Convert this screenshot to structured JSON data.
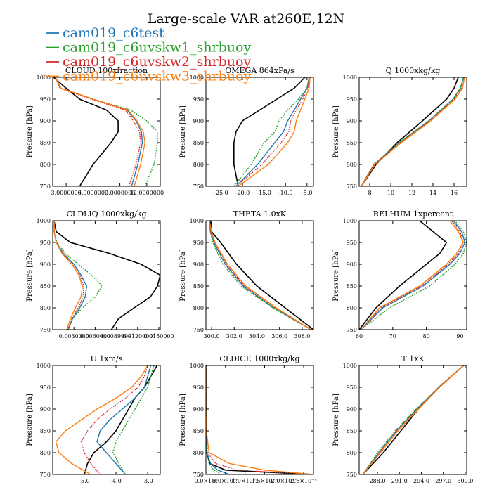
{
  "figure": {
    "title": "Large-scale VAR at260E,12N",
    "ylabel": "Pressure [hPa]"
  },
  "legend": [
    {
      "name": "cam019_c6test",
      "color": "#1f77b4"
    },
    {
      "name": "cam019_c6uvskw1_shrbuoy",
      "color": "#2ca02c"
    },
    {
      "name": "cam019_c6uvskw2_shrbuoy",
      "color": "#d62728"
    },
    {
      "name": "cam019_c6uvskw3_shrbuoy",
      "color": "#ff7f0e"
    }
  ],
  "colors": {
    "ref": "#000000",
    "s1": "#1f77b4",
    "s2": "#2ca02c",
    "s3": "#d62728",
    "s4": "#ff7f0e"
  },
  "chart_data": [
    {
      "type": "line",
      "title": "CLOUD  100xfraction",
      "ylabel": "Pressure [hPa]",
      "ylim": [
        1000,
        750
      ],
      "xlim": [
        1.5,
        13.5
      ],
      "xticks": [
        3,
        6,
        9,
        12
      ],
      "xtick_labels": [
        "3.0000000",
        "6.0000000",
        "9.0000000",
        "12.0000000"
      ],
      "y": [
        750,
        800,
        850,
        875,
        900,
        925,
        950,
        975,
        1000
      ],
      "series": [
        {
          "color": "#000000",
          "values": [
            4.5,
            6.0,
            8.0,
            8.8,
            8.8,
            7.5,
            4.5,
            3.0,
            1.6
          ]
        },
        {
          "color": "#1f77b4",
          "values": [
            10.3,
            11.0,
            11.5,
            11.4,
            10.8,
            9.8,
            6.0,
            2.4,
            1.8
          ]
        },
        {
          "color": "#2ca02c",
          "values": [
            11.8,
            12.8,
            13.2,
            13.2,
            12.0,
            10.2,
            6.0,
            2.4,
            1.8
          ]
        },
        {
          "color": "#d62728",
          "values": [
            10.0,
            10.8,
            11.3,
            11.2,
            10.5,
            9.6,
            5.8,
            2.3,
            1.8
          ]
        },
        {
          "color": "#ff7f0e",
          "values": [
            10.6,
            11.3,
            11.8,
            11.6,
            10.9,
            9.9,
            6.0,
            2.4,
            1.8
          ]
        }
      ]
    },
    {
      "type": "line",
      "title": "OMEGA  864xPa/s",
      "ylabel": "Pressure [hPa]",
      "ylim": [
        1000,
        750
      ],
      "xlim": [
        -28.5,
        -3.5
      ],
      "xticks": [
        -25,
        -20,
        -15,
        -10,
        -5
      ],
      "xtick_labels": [
        "-25.0",
        "-20.0",
        "-15.0",
        "-10.0",
        "-5.0"
      ],
      "y": [
        750,
        800,
        850,
        875,
        900,
        925,
        950,
        975,
        1000
      ],
      "series": [
        {
          "color": "#000000",
          "values": [
            -21.0,
            -22.0,
            -22.0,
            -21.5,
            -20.0,
            -16.0,
            -12.0,
            -8.0,
            -5.5
          ]
        },
        {
          "color": "#1f77b4",
          "values": [
            -21.5,
            -16.5,
            -12.5,
            -10.5,
            -9.5,
            -8.0,
            -6.5,
            -5.0,
            -4.5
          ]
        },
        {
          "color": "#2ca02c",
          "values": [
            -22.0,
            -18.0,
            -15.0,
            -12.5,
            -11.5,
            -9.5,
            -7.0,
            -5.0,
            -4.5
          ]
        },
        {
          "color": "#d62728",
          "values": [
            -21.5,
            -15.5,
            -11.0,
            -9.3,
            -8.8,
            -7.5,
            -6.0,
            -4.8,
            -4.5
          ]
        },
        {
          "color": "#ff7f0e",
          "values": [
            -21.0,
            -14.0,
            -9.5,
            -8.0,
            -7.5,
            -6.5,
            -5.5,
            -4.5,
            -4.3
          ]
        }
      ]
    },
    {
      "type": "line",
      "title": "Q  1000xkg/kg",
      "ylabel": "Pressure [hPa]",
      "ylim": [
        1000,
        750
      ],
      "xlim": [
        7.0,
        17.2
      ],
      "xticks": [
        8,
        10,
        12,
        14,
        16
      ],
      "xtick_labels": [
        "8",
        "10",
        "12",
        "14",
        "16"
      ],
      "y": [
        750,
        800,
        850,
        900,
        950,
        975,
        1000
      ],
      "series": [
        {
          "color": "#000000",
          "values": [
            7.2,
            8.6,
            10.6,
            13.0,
            15.3,
            16.0,
            16.4
          ]
        },
        {
          "color": "#1f77b4",
          "values": [
            7.2,
            8.4,
            10.8,
            13.6,
            15.9,
            16.6,
            16.9
          ]
        },
        {
          "color": "#2ca02c",
          "values": [
            7.2,
            8.4,
            10.8,
            13.6,
            15.9,
            16.6,
            16.9
          ]
        },
        {
          "color": "#d62728",
          "values": [
            7.2,
            8.4,
            10.9,
            13.7,
            16.0,
            16.7,
            17.0
          ]
        },
        {
          "color": "#ff7f0e",
          "values": [
            7.2,
            8.5,
            11.0,
            13.8,
            16.1,
            16.8,
            17.0
          ]
        }
      ]
    },
    {
      "type": "line",
      "title": "CLDLIQ  1000xkg/kg",
      "ylabel": "Pressure [hPa]",
      "ylim": [
        1000,
        750
      ],
      "xlim": [
        0.0,
        0.0152
      ],
      "xticks": [
        0.003,
        0.006,
        0.009,
        0.012,
        0.015
      ],
      "xtick_labels": [
        "0.0030000",
        "0.0060000",
        "0.0089999",
        "0.0120000",
        "0.0150000"
      ],
      "y": [
        750,
        775,
        800,
        825,
        850,
        875,
        900,
        925,
        950,
        975,
        1000
      ],
      "series": [
        {
          "color": "#000000",
          "values": [
            0.0083,
            0.0093,
            0.0115,
            0.0138,
            0.0148,
            0.0152,
            0.0125,
            0.008,
            0.0025,
            0.0005,
            0.0002
          ]
        },
        {
          "color": "#1f77b4",
          "values": [
            0.0022,
            0.0028,
            0.0038,
            0.0046,
            0.0048,
            0.004,
            0.003,
            0.0015,
            0.0005,
            0.0002,
            0.0002
          ]
        },
        {
          "color": "#2ca02c",
          "values": [
            0.0022,
            0.0028,
            0.0042,
            0.006,
            0.007,
            0.0055,
            0.0036,
            0.0018,
            0.0006,
            0.0002,
            0.0002
          ]
        },
        {
          "color": "#d62728",
          "values": [
            0.0021,
            0.0027,
            0.0036,
            0.0043,
            0.0044,
            0.0038,
            0.0028,
            0.0014,
            0.0005,
            0.0002,
            0.0002
          ]
        },
        {
          "color": "#ff7f0e",
          "values": [
            0.002,
            0.0025,
            0.0032,
            0.004,
            0.0042,
            0.0037,
            0.0027,
            0.0013,
            0.0005,
            0.0002,
            0.0002
          ]
        }
      ]
    },
    {
      "type": "line",
      "title": "THETA  1.0xK",
      "ylabel": "Pressure [hPa]",
      "ylim": [
        1000,
        750
      ],
      "xlim": [
        299.5,
        309.0
      ],
      "xticks": [
        300,
        302,
        304,
        306,
        308
      ],
      "xtick_labels": [
        "300.0",
        "302.0",
        "304.0",
        "306.0",
        "308.0"
      ],
      "y": [
        750,
        800,
        850,
        900,
        950,
        975,
        1000
      ],
      "series": [
        {
          "color": "#000000",
          "values": [
            309.0,
            306.5,
            304.0,
            302.2,
            300.8,
            300.0,
            299.9
          ]
        },
        {
          "color": "#1f77b4",
          "values": [
            308.8,
            305.5,
            302.8,
            301.2,
            300.2,
            299.9,
            299.8
          ]
        },
        {
          "color": "#2ca02c",
          "values": [
            308.8,
            305.4,
            302.6,
            301.0,
            300.1,
            299.9,
            299.8
          ]
        },
        {
          "color": "#d62728",
          "values": [
            308.8,
            305.6,
            302.9,
            301.3,
            300.3,
            299.9,
            299.8
          ]
        },
        {
          "color": "#ff7f0e",
          "values": [
            308.8,
            305.7,
            303.0,
            301.4,
            300.3,
            300.0,
            299.8
          ]
        }
      ]
    },
    {
      "type": "line",
      "title": "RELHUM  1xpercent",
      "ylabel": "Pressure [hPa]",
      "ylim": [
        1000,
        750
      ],
      "xlim": [
        60,
        92
      ],
      "xticks": [
        60,
        70,
        80,
        90
      ],
      "xtick_labels": [
        "60",
        "70",
        "80",
        "90"
      ],
      "y": [
        750,
        800,
        850,
        900,
        925,
        950,
        975,
        1000
      ],
      "series": [
        {
          "color": "#000000",
          "values": [
            60.0,
            65.0,
            72.0,
            80.0,
            84.0,
            86.0,
            82.0,
            78.0
          ]
        },
        {
          "color": "#1f77b4",
          "values": [
            60.5,
            67.0,
            79.0,
            87.0,
            90.0,
            91.5,
            90.5,
            88.0
          ]
        },
        {
          "color": "#2ca02c",
          "values": [
            60.5,
            69.0,
            81.0,
            88.5,
            91.0,
            92.0,
            91.0,
            88.5
          ]
        },
        {
          "color": "#d62728",
          "values": [
            60.5,
            66.5,
            78.5,
            86.5,
            89.5,
            91.0,
            90.0,
            87.5
          ]
        },
        {
          "color": "#ff7f0e",
          "values": [
            60.5,
            66.0,
            78.0,
            86.0,
            89.0,
            91.0,
            89.5,
            87.0
          ]
        }
      ]
    },
    {
      "type": "line",
      "title": "U  1xm/s",
      "ylabel": "Pressure [hPa]",
      "ylim": [
        1000,
        750
      ],
      "xlim": [
        -6.0,
        -2.6
      ],
      "xticks": [
        -5,
        -4,
        -3
      ],
      "xtick_labels": [
        "-5.0",
        "-4.0",
        "-3.0"
      ],
      "y": [
        750,
        775,
        800,
        825,
        850,
        875,
        900,
        925,
        950,
        975,
        1000
      ],
      "series": [
        {
          "color": "#000000",
          "values": [
            -5.0,
            -4.9,
            -4.7,
            -4.3,
            -4.0,
            -3.8,
            -3.6,
            -3.4,
            -3.1,
            -2.9,
            -2.7
          ]
        },
        {
          "color": "#1f77b4",
          "values": [
            -3.7,
            -4.0,
            -4.3,
            -4.6,
            -4.5,
            -4.2,
            -3.8,
            -3.4,
            -3.1,
            -3.0,
            -2.9
          ]
        },
        {
          "color": "#2ca02c",
          "values": [
            -3.7,
            -3.9,
            -4.1,
            -4.0,
            -3.8,
            -3.6,
            -3.4,
            -3.2,
            -3.0,
            -2.9,
            -2.8
          ]
        },
        {
          "color": "#d62728",
          "values": [
            -4.5,
            -4.8,
            -5.0,
            -5.1,
            -4.9,
            -4.6,
            -4.2,
            -3.7,
            -3.3,
            -3.1,
            -3.0
          ]
        },
        {
          "color": "#ff7f0e",
          "values": [
            -4.8,
            -5.4,
            -5.8,
            -5.9,
            -5.6,
            -5.1,
            -4.6,
            -4.0,
            -3.5,
            -3.2,
            -3.0
          ]
        }
      ]
    },
    {
      "type": "line",
      "title": "CLDICE  1000xkg/kg",
      "ylabel": "Pressure [hPa]",
      "ylim": [
        1000,
        750
      ],
      "xlim": [
        0,
        2.75e-05
      ],
      "xticks": [
        0,
        5e-06,
        1e-05,
        1.5e-05,
        2e-05,
        2.5e-05
      ],
      "xtick_labels": [
        "0.0×10⁰",
        "5.0×10⁻⁶",
        "1.0×10⁻⁵",
        "1.5×10⁻⁵",
        "2.0×10⁻⁵",
        "2.5×10⁻⁵"
      ],
      "y": [
        750,
        760,
        775,
        800,
        850,
        900,
        950,
        1000
      ],
      "series": [
        {
          "color": "#000000",
          "values": [
            2.7e-05,
            5e-06,
            1e-06,
            2e-07,
            1e-07,
            0.0,
            0.0,
            0.0
          ]
        },
        {
          "color": "#1f77b4",
          "values": [
            6e-06,
            3e-06,
            1.2e-06,
            2e-07,
            1e-07,
            0.0,
            0.0,
            0.0
          ]
        },
        {
          "color": "#2ca02c",
          "values": [
            4e-06,
            2e-06,
            8e-07,
            2e-07,
            1e-07,
            0.0,
            0.0,
            0.0
          ]
        },
        {
          "color": "#d62728",
          "values": [
            2.75e-05,
            8e-06,
            2.5e-06,
            4e-07,
            1e-07,
            0.0,
            0.0,
            0.0
          ]
        },
        {
          "color": "#ff7f0e",
          "values": [
            2.75e-05,
            1.5e-05,
            6e-06,
            8e-07,
            1e-07,
            0.0,
            0.0,
            0.0
          ]
        }
      ]
    },
    {
      "type": "line",
      "title": "T  1xK",
      "ylabel": "Pressure [hPa]",
      "ylim": [
        1000,
        750
      ],
      "xlim": [
        285.5,
        300.2
      ],
      "xticks": [
        288,
        291,
        294,
        297,
        300
      ],
      "xtick_labels": [
        "288.0",
        "291.0",
        "294.0",
        "297.0",
        "300.0"
      ],
      "y": [
        750,
        800,
        850,
        900,
        950,
        1000
      ],
      "series": [
        {
          "color": "#000000",
          "values": [
            286.0,
            288.8,
            291.2,
            293.6,
            296.4,
            299.8
          ]
        },
        {
          "color": "#1f77b4",
          "values": [
            286.0,
            288.2,
            290.6,
            293.4,
            296.4,
            299.8
          ]
        },
        {
          "color": "#2ca02c",
          "values": [
            286.0,
            288.0,
            290.4,
            293.3,
            296.4,
            299.8
          ]
        },
        {
          "color": "#d62728",
          "values": [
            286.0,
            288.3,
            290.7,
            293.5,
            296.4,
            299.8
          ]
        },
        {
          "color": "#ff7f0e",
          "values": [
            286.0,
            288.4,
            290.8,
            293.6,
            296.5,
            299.8
          ]
        }
      ]
    }
  ],
  "yticks": [
    750,
    800,
    850,
    900,
    950,
    1000
  ],
  "ytick_labels": [
    "750",
    "800",
    "850",
    "900",
    "950",
    "1000"
  ]
}
